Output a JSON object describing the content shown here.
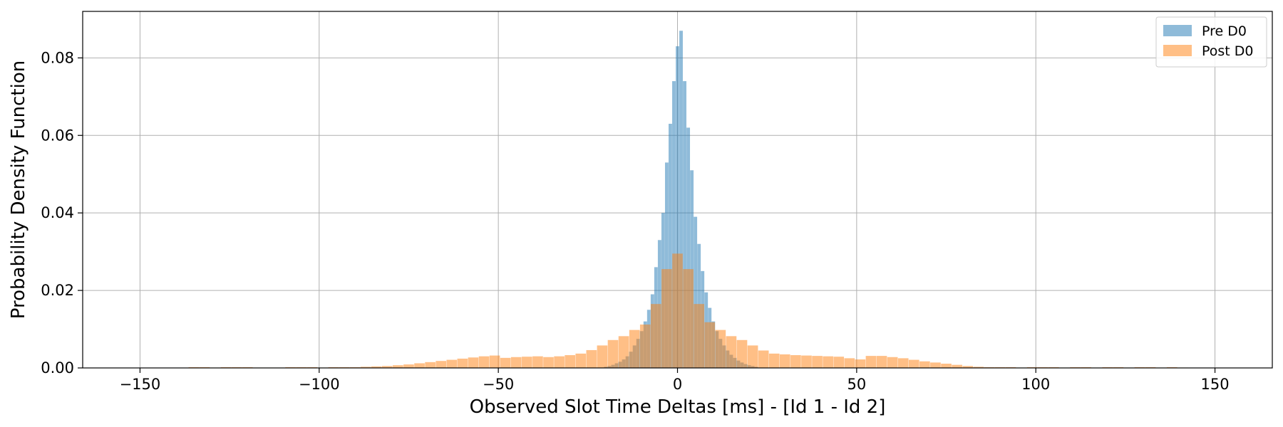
{
  "chart_data": {
    "type": "bar",
    "subtype": "histogram",
    "title": "",
    "xlabel": "Observed Slot Time Deltas [ms] - [Id 1 - Id 2]",
    "ylabel": "Probability Density Function",
    "xlim": [
      -166,
      166
    ],
    "ylim": [
      0,
      0.092
    ],
    "xticks": [
      -150,
      -100,
      -50,
      0,
      50,
      100,
      150
    ],
    "xtick_labels": [
      "−150",
      "−100",
      "−50",
      "0",
      "50",
      "100",
      "150"
    ],
    "yticks": [
      0,
      0.02,
      0.04,
      0.06,
      0.08
    ],
    "ytick_labels": [
      "0.00",
      "0.02",
      "0.04",
      "0.06",
      "0.08"
    ],
    "grid": true,
    "legend_position": "top-right",
    "series": [
      {
        "name": "Pre D0",
        "color": "#1f77b4",
        "opacity": 0.5,
        "bin_width": 0.97,
        "bins": [
          [
            -20,
            0.0003
          ],
          [
            -19,
            0.0005
          ],
          [
            -18,
            0.0008
          ],
          [
            -17,
            0.0012
          ],
          [
            -16,
            0.0016
          ],
          [
            -15,
            0.0022
          ],
          [
            -14,
            0.003
          ],
          [
            -13,
            0.0042
          ],
          [
            -12,
            0.0058
          ],
          [
            -11,
            0.0075
          ],
          [
            -10,
            0.0095
          ],
          [
            -9,
            0.012
          ],
          [
            -8,
            0.015
          ],
          [
            -7,
            0.019
          ],
          [
            -6,
            0.026
          ],
          [
            -5,
            0.033
          ],
          [
            -4,
            0.04
          ],
          [
            -3,
            0.053
          ],
          [
            -2,
            0.063
          ],
          [
            -1,
            0.074
          ],
          [
            0,
            0.083
          ],
          [
            1,
            0.087
          ],
          [
            2,
            0.074
          ],
          [
            3,
            0.062
          ],
          [
            4,
            0.051
          ],
          [
            5,
            0.039
          ],
          [
            6,
            0.032
          ],
          [
            7,
            0.025
          ],
          [
            8,
            0.0195
          ],
          [
            9,
            0.0155
          ],
          [
            10,
            0.012
          ],
          [
            11,
            0.0095
          ],
          [
            12,
            0.0075
          ],
          [
            13,
            0.0058
          ],
          [
            14,
            0.0045
          ],
          [
            15,
            0.0034
          ],
          [
            16,
            0.0026
          ],
          [
            17,
            0.0019
          ],
          [
            18,
            0.0014
          ],
          [
            19,
            0.001
          ],
          [
            20,
            0.0007
          ],
          [
            21,
            0.0005
          ],
          [
            22,
            0.0003
          ]
        ]
      },
      {
        "name": "Post D0",
        "color": "#ff7f0e",
        "opacity": 0.5,
        "bin_width": 2.92,
        "bins": [
          [
            -135,
            0.0002
          ],
          [
            -132,
            0.0002
          ],
          [
            -129,
            0.0001
          ],
          [
            -126,
            0.0002
          ],
          [
            -123,
            0.0002
          ],
          [
            -120,
            0.0002
          ],
          [
            -117,
            0.0001
          ],
          [
            -114,
            0.0001
          ],
          [
            -111,
            0.0001
          ],
          [
            -108,
            0.0002
          ],
          [
            -105,
            0.0002
          ],
          [
            -102,
            0.0002
          ],
          [
            -99,
            0.0001
          ],
          [
            -96,
            0.0002
          ],
          [
            -93,
            0.0002
          ],
          [
            -90,
            0.0002
          ],
          [
            -87,
            0.0003
          ],
          [
            -84,
            0.0004
          ],
          [
            -81,
            0.0005
          ],
          [
            -78,
            0.0007
          ],
          [
            -75,
            0.0009
          ],
          [
            -72,
            0.0012
          ],
          [
            -69,
            0.0015
          ],
          [
            -66,
            0.0018
          ],
          [
            -63,
            0.0021
          ],
          [
            -60,
            0.0024
          ],
          [
            -57,
            0.0027
          ],
          [
            -54,
            0.003
          ],
          [
            -51,
            0.0032
          ],
          [
            -48,
            0.0026
          ],
          [
            -45,
            0.0028
          ],
          [
            -42,
            0.0029
          ],
          [
            -39,
            0.003
          ],
          [
            -36,
            0.0028
          ],
          [
            -33,
            0.003
          ],
          [
            -30,
            0.0033
          ],
          [
            -27,
            0.0037
          ],
          [
            -24,
            0.0046
          ],
          [
            -21,
            0.0058
          ],
          [
            -18,
            0.0072
          ],
          [
            -15,
            0.0082
          ],
          [
            -12,
            0.0098
          ],
          [
            -9,
            0.0112
          ],
          [
            -6,
            0.0165
          ],
          [
            -3,
            0.0255
          ],
          [
            0,
            0.0295
          ],
          [
            3,
            0.0255
          ],
          [
            6,
            0.0165
          ],
          [
            9,
            0.0118
          ],
          [
            12,
            0.0098
          ],
          [
            15,
            0.0082
          ],
          [
            18,
            0.0072
          ],
          [
            21,
            0.0058
          ],
          [
            24,
            0.0045
          ],
          [
            27,
            0.0037
          ],
          [
            30,
            0.0035
          ],
          [
            33,
            0.0033
          ],
          [
            36,
            0.0032
          ],
          [
            39,
            0.0031
          ],
          [
            42,
            0.003
          ],
          [
            45,
            0.0029
          ],
          [
            48,
            0.0025
          ],
          [
            51,
            0.0022
          ],
          [
            54,
            0.0031
          ],
          [
            57,
            0.0031
          ],
          [
            60,
            0.0028
          ],
          [
            63,
            0.0025
          ],
          [
            66,
            0.0021
          ],
          [
            69,
            0.0017
          ],
          [
            72,
            0.0014
          ],
          [
            75,
            0.0011
          ],
          [
            78,
            0.0008
          ],
          [
            81,
            0.0005
          ],
          [
            84,
            0.0003
          ],
          [
            87,
            0.0002
          ],
          [
            90,
            0.0002
          ],
          [
            93,
            0.0002
          ],
          [
            96,
            0.0001
          ],
          [
            99,
            0.0002
          ],
          [
            102,
            0.0002
          ],
          [
            105,
            0.0002
          ],
          [
            108,
            0.0001
          ],
          [
            111,
            0.0002
          ],
          [
            114,
            0.0002
          ],
          [
            117,
            0.0001
          ],
          [
            120,
            0.0002
          ],
          [
            123,
            0.0002
          ],
          [
            126,
            0.0001
          ],
          [
            129,
            0.0002
          ],
          [
            132,
            0.0002
          ],
          [
            135,
            0.0001
          ],
          [
            138,
            0.0002
          ],
          [
            141,
            0.0001
          ]
        ]
      }
    ]
  }
}
